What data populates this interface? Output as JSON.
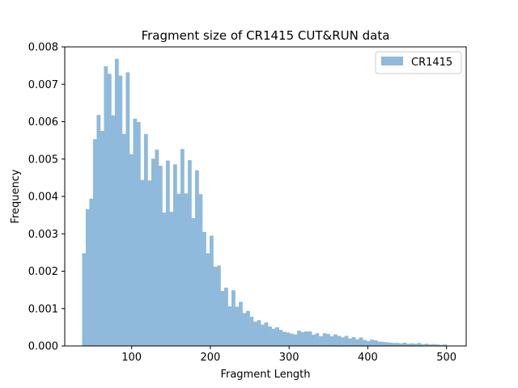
{
  "chart_data": {
    "type": "bar",
    "title": "Fragment size of CR1415 CUT&RUN data",
    "xlabel": "Fragment Length",
    "ylabel": "Frequency",
    "xlim": [
      15,
      525
    ],
    "ylim": [
      0,
      0.008
    ],
    "x_ticks": [
      100,
      200,
      300,
      400,
      500
    ],
    "x_tick_labels": [
      "100",
      "200",
      "300",
      "400",
      "500"
    ],
    "y_ticks": [
      0,
      0.001,
      0.002,
      0.003,
      0.004,
      0.005,
      0.006,
      0.007,
      0.008
    ],
    "y_tick_labels": [
      "0.000",
      "0.001",
      "0.002",
      "0.003",
      "0.004",
      "0.005",
      "0.006",
      "0.007",
      "0.008"
    ],
    "grid": false,
    "legend_position": "top-right",
    "color": "#8fbadb",
    "series": [
      {
        "name": "CR1415",
        "bin_start": 37,
        "bin_width": 4.63,
        "values": [
          0.00248,
          0.00366,
          0.00394,
          0.00553,
          0.00618,
          0.00575,
          0.00748,
          0.00728,
          0.00617,
          0.00768,
          0.00723,
          0.00567,
          0.00732,
          0.00513,
          0.00608,
          0.00599,
          0.00444,
          0.00567,
          0.00443,
          0.00501,
          0.00525,
          0.00482,
          0.00357,
          0.00496,
          0.00359,
          0.00486,
          0.00407,
          0.00527,
          0.00408,
          0.00497,
          0.00342,
          0.0047,
          0.00406,
          0.00305,
          0.00248,
          0.00295,
          0.00212,
          0.00215,
          0.00147,
          0.00156,
          0.00106,
          0.00149,
          0.00105,
          0.00118,
          0.00088,
          0.00094,
          0.00078,
          0.00065,
          0.00069,
          0.00057,
          0.00063,
          0.00052,
          0.00046,
          0.0005,
          0.00043,
          0.00038,
          0.00036,
          0.00033,
          0.00031,
          0.00041,
          0.00037,
          0.00039,
          0.00039,
          0.0003,
          0.00034,
          0.00026,
          0.00034,
          0.00032,
          0.00026,
          0.00031,
          0.00027,
          0.00023,
          0.00027,
          0.0002,
          0.00024,
          0.00018,
          0.00023,
          0.00016,
          0.00013,
          0.00017,
          0.00015,
          0.00012,
          0.00011,
          0.0001,
          9e-05,
          8e-05,
          8e-05,
          7e-05,
          9e-05,
          6e-05,
          7e-05,
          6e-05,
          8e-05,
          5e-05,
          6e-05,
          4e-05,
          5e-05,
          4e-05,
          3e-05,
          4e-05
        ]
      }
    ]
  }
}
